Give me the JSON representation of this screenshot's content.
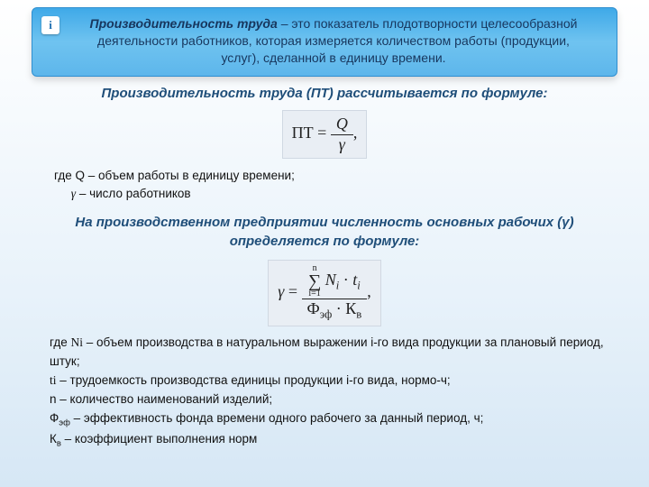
{
  "colors": {
    "page_bg_top": "#ffffff",
    "page_bg_mid": "#e8f2fa",
    "page_bg_bot": "#d6e7f5",
    "box_grad_top": "#3fa9e8",
    "box_grad_mid": "#6fc3f0",
    "box_grad_bot": "#5db6eb",
    "box_border": "#2f8fd0",
    "heading_text": "#1f4e79",
    "body_text": "#111111",
    "formula_bg": "#e9eef4",
    "formula_border": "#d0d8e2"
  },
  "icon": {
    "glyph": "i"
  },
  "definition": {
    "term": "Производительность труда",
    "rest": " – это показатель плодотворности целесообразной деятельности работников, которая измеряется количеством работы (продукции, услуг), сделанной в единицу времени."
  },
  "heading1": "Производительность труда (ПТ) рассчитывается по формуле:",
  "formula1": {
    "lhs": "ПТ",
    "eq": " = ",
    "num": "Q",
    "den": "γ",
    "trail": ","
  },
  "where1": {
    "l1": "где Q – объем работы в единицу времени;",
    "l2_sym": "γ",
    "l2_rest": " – число работников"
  },
  "heading2": "На производственном предприятии численность основных рабочих (γ) определяется по формуле:",
  "formula2": {
    "lhs": "γ",
    "eq": " = ",
    "sum_top": "n",
    "sum_bot": "i=1",
    "num_rest_a": "N",
    "num_rest_a_sub": "i",
    "dot": " · ",
    "num_rest_b": "t",
    "num_rest_b_sub": "i",
    "den_a": "Ф",
    "den_a_sub": "эф",
    "den_dot": " · ",
    "den_b": "К",
    "den_b_sub": "в",
    "trail": ","
  },
  "where2": {
    "l1a": "где ",
    "l1b": "Ni",
    "l1c": " – объем производства в натуральном выражении i-го вида продукции за плановый период, штук;",
    "l2a": "ti",
    "l2b": " – трудоемкость производства единицы продукции i-го вида, нормо-ч;",
    "l3": "n – количество наименований изделий;",
    "l4a": "Ф",
    "l4sub": "эф",
    "l4b": " – эффективность фонда времени одного рабочего за данный период, ч;",
    "l5a": "К",
    "l5sub": "в",
    "l5b": " – коэффициент выполнения норм"
  }
}
